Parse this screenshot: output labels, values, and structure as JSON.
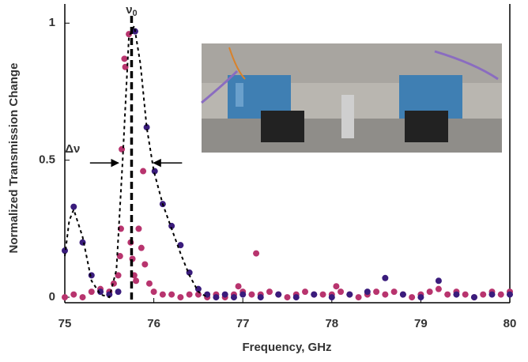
{
  "chart_data": {
    "type": "scatter",
    "xlabel": "Frequency, GHz",
    "ylabel": "Normalized Transmission Change",
    "xlim": [
      75,
      80
    ],
    "xticks": [
      75,
      76,
      77,
      78,
      79,
      80
    ],
    "ylim": [
      -0.02,
      1.07
    ],
    "yticks": [
      0,
      0.5,
      1
    ],
    "marker": {
      "x": 75.75,
      "label": "ν",
      "subscript": "0"
    },
    "width": {
      "label": "Δν",
      "x": [
        75.62,
        75.98
      ],
      "y": 0.49
    },
    "series": [
      {
        "color": "#b8346e",
        "x": [
          75.0,
          75.1,
          75.2,
          75.3,
          75.4,
          75.5,
          75.55,
          75.6,
          75.62,
          75.63,
          75.64,
          75.67,
          75.68,
          75.72,
          75.74,
          75.76,
          75.78,
          75.8,
          75.83,
          75.86,
          75.88,
          75.9,
          75.95,
          76.0,
          76.1,
          76.2,
          76.3,
          76.4,
          76.5,
          76.6,
          76.7,
          76.8,
          76.9,
          76.95,
          77.0,
          77.1,
          77.15,
          77.2,
          77.3,
          77.4,
          77.5,
          77.6,
          77.7,
          77.8,
          77.9,
          78.0,
          78.05,
          78.1,
          78.2,
          78.3,
          78.4,
          78.5,
          78.6,
          78.7,
          78.8,
          78.9,
          79.0,
          79.1,
          79.2,
          79.3,
          79.4,
          79.5,
          79.6,
          79.7,
          79.8,
          79.9,
          80.0
        ],
        "values": [
          0.0,
          0.01,
          0.0,
          0.02,
          0.03,
          0.02,
          0.05,
          0.08,
          0.15,
          0.25,
          0.54,
          0.87,
          0.84,
          0.96,
          0.2,
          0.14,
          0.08,
          0.06,
          0.25,
          0.18,
          0.46,
          0.12,
          0.05,
          0.02,
          0.01,
          0.01,
          0.0,
          0.01,
          0.01,
          0.0,
          0.01,
          0.0,
          0.01,
          0.04,
          0.02,
          0.01,
          0.16,
          0.01,
          0.02,
          0.01,
          0.0,
          0.01,
          0.02,
          0.01,
          0.01,
          0.01,
          0.04,
          0.02,
          0.01,
          0.0,
          0.01,
          0.02,
          0.01,
          0.02,
          0.01,
          0.0,
          0.01,
          0.02,
          0.03,
          0.01,
          0.02,
          0.01,
          0.0,
          0.01,
          0.02,
          0.01,
          0.02
        ]
      },
      {
        "color": "#3a1c7c",
        "x": [
          75.0,
          75.1,
          75.2,
          75.3,
          75.4,
          75.5,
          75.6,
          75.79,
          75.92,
          76.01,
          76.1,
          76.2,
          76.3,
          76.4,
          76.5,
          76.6,
          76.7,
          76.8,
          76.9,
          77.0,
          77.2,
          77.4,
          77.6,
          77.8,
          78.0,
          78.2,
          78.4,
          78.6,
          78.8,
          79.0,
          79.2,
          79.4,
          79.6,
          79.8,
          80.0
        ],
        "values": [
          0.17,
          0.33,
          0.2,
          0.08,
          0.02,
          0.01,
          0.02,
          0.97,
          0.62,
          0.46,
          0.34,
          0.26,
          0.19,
          0.09,
          0.03,
          0.01,
          0.0,
          0.01,
          0.0,
          0.01,
          0.0,
          0.01,
          0.0,
          0.01,
          0.0,
          0.01,
          0.02,
          0.07,
          0.01,
          0.0,
          0.06,
          0.01,
          0.0,
          0.01,
          0.01
        ]
      },
      {
        "color": "#000000",
        "style": "dashed",
        "x": [
          75.0,
          75.05,
          75.1,
          75.2,
          75.3,
          75.4,
          75.5,
          75.58,
          75.65,
          75.72,
          75.78,
          75.85,
          75.92,
          76.0,
          76.1,
          76.2,
          76.3,
          76.4,
          76.5,
          76.6
        ],
        "values": [
          0.15,
          0.28,
          0.32,
          0.22,
          0.06,
          0.01,
          0.0,
          0.1,
          0.5,
          0.95,
          0.99,
          0.85,
          0.62,
          0.46,
          0.34,
          0.25,
          0.16,
          0.08,
          0.02,
          0.0
        ]
      }
    ]
  }
}
